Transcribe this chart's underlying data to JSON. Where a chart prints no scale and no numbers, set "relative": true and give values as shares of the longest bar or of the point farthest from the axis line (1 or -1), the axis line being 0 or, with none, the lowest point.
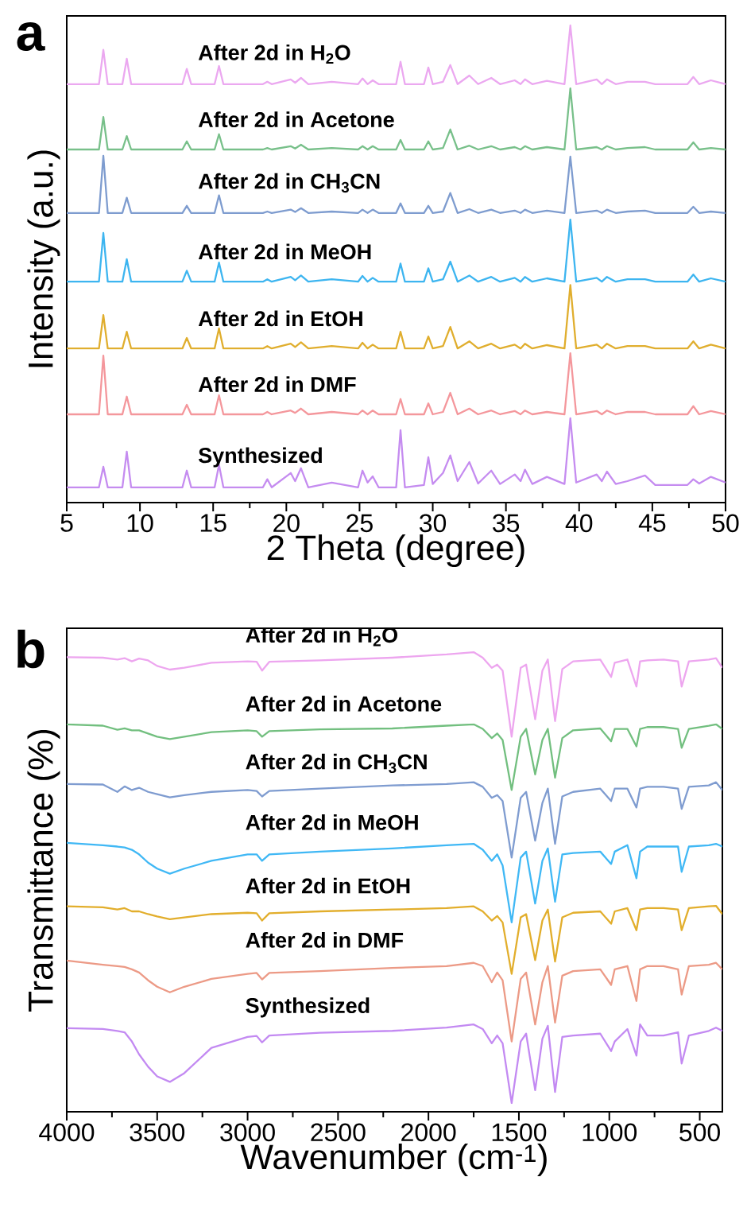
{
  "chart_data": [
    {
      "type": "line",
      "relative": true,
      "xlabel": "2 Theta (degree)",
      "ylabel": "Intensity (a.u.)",
      "annotations": [
        "a"
      ],
      "xlim": [
        5,
        50
      ],
      "xticks": [
        5,
        10,
        15,
        20,
        25,
        30,
        35,
        40,
        45,
        50
      ],
      "x": [
        5,
        7.2,
        7.5,
        7.8,
        8.8,
        9.1,
        9.4,
        12.9,
        13.2,
        13.5,
        15.1,
        15.4,
        15.7,
        18.4,
        18.7,
        19.0,
        20.3,
        20.6,
        21.0,
        21.5,
        23.1,
        24.9,
        25.2,
        25.55,
        25.9,
        26.3,
        27.5,
        27.8,
        28.1,
        29.4,
        29.7,
        30.0,
        30.7,
        31.2,
        31.7,
        32.5,
        33.1,
        34.0,
        34.6,
        35.6,
        36.0,
        36.3,
        36.8,
        37.8,
        39.0,
        39.4,
        39.8,
        41.2,
        41.55,
        41.9,
        42.5,
        43.3,
        44.5,
        45.2,
        47.4,
        47.8,
        48.2,
        49.0,
        50
      ],
      "series": [
        {
          "name": "After 2d in H$_{2}$O",
          "color": "#eba8f0",
          "values": [
            0.877,
            0.877,
            0.949,
            0.877,
            0.877,
            0.93,
            0.877,
            0.877,
            0.909,
            0.877,
            0.877,
            0.915,
            0.877,
            0.877,
            0.882,
            0.877,
            0.887,
            0.88,
            0.89,
            0.877,
            0.882,
            0.877,
            0.889,
            0.877,
            0.885,
            0.877,
            0.877,
            0.924,
            0.877,
            0.877,
            0.912,
            0.877,
            0.882,
            0.917,
            0.877,
            0.895,
            0.877,
            0.89,
            0.877,
            0.885,
            0.877,
            0.887,
            0.877,
            0.884,
            0.877,
            1.0,
            0.877,
            0.887,
            0.877,
            0.887,
            0.877,
            0.882,
            0.882,
            0.877,
            0.877,
            0.892,
            0.877,
            0.885,
            0.877
          ]
        },
        {
          "name": "After 2d in Acetone",
          "color": "#78c08a",
          "values": [
            0.74,
            0.74,
            0.808,
            0.74,
            0.74,
            0.768,
            0.74,
            0.74,
            0.757,
            0.74,
            0.74,
            0.772,
            0.74,
            0.74,
            0.743,
            0.74,
            0.747,
            0.742,
            0.75,
            0.74,
            0.743,
            0.74,
            0.747,
            0.74,
            0.747,
            0.74,
            0.74,
            0.76,
            0.74,
            0.74,
            0.757,
            0.74,
            0.743,
            0.782,
            0.74,
            0.748,
            0.74,
            0.747,
            0.74,
            0.745,
            0.74,
            0.747,
            0.74,
            0.745,
            0.74,
            0.868,
            0.74,
            0.745,
            0.74,
            0.747,
            0.74,
            0.743,
            0.745,
            0.74,
            0.74,
            0.755,
            0.74,
            0.743,
            0.74
          ]
        },
        {
          "name": "After 2d in CH$_{3}$CN",
          "color": "#7e9ccf",
          "values": [
            0.607,
            0.607,
            0.727,
            0.607,
            0.607,
            0.639,
            0.607,
            0.607,
            0.622,
            0.607,
            0.607,
            0.644,
            0.607,
            0.607,
            0.61,
            0.607,
            0.614,
            0.609,
            0.617,
            0.607,
            0.61,
            0.607,
            0.614,
            0.607,
            0.614,
            0.607,
            0.607,
            0.627,
            0.607,
            0.607,
            0.622,
            0.607,
            0.61,
            0.649,
            0.607,
            0.615,
            0.607,
            0.614,
            0.607,
            0.612,
            0.607,
            0.614,
            0.607,
            0.612,
            0.607,
            0.725,
            0.607,
            0.612,
            0.607,
            0.614,
            0.607,
            0.61,
            0.612,
            0.607,
            0.607,
            0.62,
            0.607,
            0.61,
            0.607
          ]
        },
        {
          "name": "After 2d in MeOH",
          "color": "#3db5f0",
          "values": [
            0.463,
            0.463,
            0.565,
            0.463,
            0.463,
            0.51,
            0.463,
            0.463,
            0.486,
            0.463,
            0.463,
            0.503,
            0.463,
            0.463,
            0.468,
            0.463,
            0.473,
            0.466,
            0.476,
            0.463,
            0.468,
            0.463,
            0.475,
            0.463,
            0.471,
            0.463,
            0.463,
            0.501,
            0.463,
            0.463,
            0.491,
            0.463,
            0.468,
            0.505,
            0.463,
            0.476,
            0.463,
            0.473,
            0.463,
            0.471,
            0.463,
            0.473,
            0.463,
            0.47,
            0.463,
            0.593,
            0.463,
            0.471,
            0.463,
            0.473,
            0.463,
            0.468,
            0.468,
            0.463,
            0.463,
            0.478,
            0.463,
            0.47,
            0.463
          ]
        },
        {
          "name": "After 2d in EtOH",
          "color": "#e0ae2e",
          "values": [
            0.323,
            0.323,
            0.393,
            0.323,
            0.323,
            0.358,
            0.323,
            0.323,
            0.345,
            0.323,
            0.323,
            0.365,
            0.323,
            0.323,
            0.328,
            0.323,
            0.333,
            0.326,
            0.336,
            0.323,
            0.328,
            0.323,
            0.335,
            0.323,
            0.331,
            0.323,
            0.323,
            0.358,
            0.323,
            0.323,
            0.348,
            0.323,
            0.328,
            0.368,
            0.323,
            0.338,
            0.323,
            0.333,
            0.323,
            0.331,
            0.323,
            0.333,
            0.323,
            0.33,
            0.323,
            0.456,
            0.323,
            0.331,
            0.323,
            0.333,
            0.323,
            0.328,
            0.328,
            0.323,
            0.323,
            0.338,
            0.323,
            0.331,
            0.323
          ]
        },
        {
          "name": "After 2d in DMF",
          "color": "#f4979c",
          "values": [
            0.185,
            0.185,
            0.308,
            0.185,
            0.185,
            0.222,
            0.185,
            0.185,
            0.205,
            0.185,
            0.185,
            0.225,
            0.185,
            0.185,
            0.19,
            0.185,
            0.193,
            0.188,
            0.197,
            0.185,
            0.19,
            0.185,
            0.193,
            0.185,
            0.193,
            0.185,
            0.185,
            0.217,
            0.185,
            0.185,
            0.208,
            0.185,
            0.19,
            0.23,
            0.185,
            0.197,
            0.185,
            0.193,
            0.185,
            0.192,
            0.185,
            0.193,
            0.185,
            0.19,
            0.185,
            0.313,
            0.185,
            0.192,
            0.185,
            0.193,
            0.185,
            0.19,
            0.19,
            0.185,
            0.185,
            0.202,
            0.185,
            0.192,
            0.185
          ]
        },
        {
          "name": "Synthesized",
          "color": "#c58cf0",
          "values": [
            0.032,
            0.032,
            0.075,
            0.032,
            0.032,
            0.107,
            0.032,
            0.032,
            0.067,
            0.032,
            0.032,
            0.079,
            0.032,
            0.032,
            0.049,
            0.032,
            0.062,
            0.045,
            0.072,
            0.032,
            0.042,
            0.032,
            0.067,
            0.042,
            0.055,
            0.032,
            0.032,
            0.152,
            0.032,
            0.037,
            0.095,
            0.039,
            0.062,
            0.099,
            0.045,
            0.085,
            0.04,
            0.067,
            0.039,
            0.059,
            0.045,
            0.069,
            0.039,
            0.054,
            0.039,
            0.177,
            0.042,
            0.059,
            0.045,
            0.065,
            0.039,
            0.045,
            0.057,
            0.037,
            0.037,
            0.049,
            0.04,
            0.054,
            0.042
          ]
        }
      ]
    },
    {
      "type": "line",
      "relative": true,
      "xlabel": "Wavenumber (cm$^{-1}$)",
      "ylabel": "Transmittance (%)",
      "annotations": [
        "b"
      ],
      "xlim": [
        4000,
        375
      ],
      "xticks": [
        4000,
        3500,
        3000,
        2500,
        2000,
        1500,
        1000,
        500
      ],
      "x": [
        4000,
        3800,
        3720,
        3680,
        3640,
        3600,
        3550,
        3500,
        3430,
        3350,
        3200,
        3000,
        2950,
        2920,
        2880,
        2600,
        2200,
        1900,
        1750,
        1700,
        1650,
        1620,
        1590,
        1540,
        1490,
        1460,
        1410,
        1370,
        1340,
        1300,
        1260,
        1200,
        1050,
        990,
        970,
        900,
        850,
        830,
        790,
        700,
        620,
        600,
        560,
        450,
        410,
        375
      ],
      "series": [
        {
          "name": "After 2d in H$_{2}$O",
          "color": "#eda6ef",
          "values": [
            0.989,
            0.988,
            0.984,
            0.987,
            0.98,
            0.986,
            0.982,
            0.97,
            0.962,
            0.966,
            0.977,
            0.98,
            0.979,
            0.96,
            0.979,
            0.982,
            0.988,
            0.995,
            1.0,
            0.988,
            0.966,
            0.973,
            0.96,
            0.816,
            0.966,
            0.973,
            0.854,
            0.96,
            0.984,
            0.85,
            0.963,
            0.98,
            0.984,
            0.946,
            0.977,
            0.984,
            0.925,
            0.98,
            0.982,
            0.984,
            0.98,
            0.925,
            0.98,
            0.984,
            0.987,
            0.966
          ]
        },
        {
          "name": "After 2d in Acetone",
          "color": "#72bf7f",
          "values": [
            0.843,
            0.84,
            0.831,
            0.834,
            0.83,
            0.83,
            0.823,
            0.816,
            0.811,
            0.816,
            0.826,
            0.83,
            0.828,
            0.816,
            0.828,
            0.832,
            0.834,
            0.84,
            0.843,
            0.833,
            0.813,
            0.823,
            0.809,
            0.7,
            0.816,
            0.833,
            0.734,
            0.809,
            0.833,
            0.727,
            0.813,
            0.83,
            0.834,
            0.806,
            0.833,
            0.833,
            0.795,
            0.833,
            0.837,
            0.837,
            0.833,
            0.792,
            0.833,
            0.84,
            0.843,
            0.833
          ]
        },
        {
          "name": "After 2d in CH$_{3}$CN",
          "color": "#7f9cd0",
          "values": [
            0.713,
            0.712,
            0.696,
            0.708,
            0.7,
            0.705,
            0.696,
            0.691,
            0.684,
            0.689,
            0.696,
            0.7,
            0.698,
            0.686,
            0.698,
            0.703,
            0.71,
            0.713,
            0.717,
            0.707,
            0.683,
            0.689,
            0.676,
            0.553,
            0.683,
            0.696,
            0.59,
            0.672,
            0.703,
            0.583,
            0.686,
            0.696,
            0.703,
            0.676,
            0.703,
            0.703,
            0.662,
            0.703,
            0.707,
            0.707,
            0.703,
            0.659,
            0.707,
            0.71,
            0.717,
            0.7
          ]
        },
        {
          "name": "After 2d in MeOH",
          "color": "#40b8f5",
          "values": [
            0.585,
            0.58,
            0.577,
            0.575,
            0.57,
            0.56,
            0.542,
            0.529,
            0.518,
            0.529,
            0.546,
            0.56,
            0.56,
            0.546,
            0.56,
            0.566,
            0.573,
            0.58,
            0.583,
            0.57,
            0.546,
            0.56,
            0.536,
            0.412,
            0.553,
            0.566,
            0.453,
            0.546,
            0.573,
            0.457,
            0.56,
            0.563,
            0.566,
            0.539,
            0.566,
            0.58,
            0.508,
            0.566,
            0.577,
            0.577,
            0.577,
            0.522,
            0.577,
            0.58,
            0.583,
            0.577
          ]
        },
        {
          "name": "After 2d in EtOH",
          "color": "#e2ae2c",
          "values": [
            0.447,
            0.445,
            0.44,
            0.443,
            0.436,
            0.436,
            0.43,
            0.425,
            0.419,
            0.423,
            0.43,
            0.433,
            0.432,
            0.416,
            0.432,
            0.436,
            0.44,
            0.443,
            0.447,
            0.436,
            0.416,
            0.426,
            0.412,
            0.3,
            0.423,
            0.43,
            0.33,
            0.416,
            0.44,
            0.327,
            0.423,
            0.433,
            0.436,
            0.409,
            0.436,
            0.443,
            0.395,
            0.44,
            0.443,
            0.443,
            0.44,
            0.395,
            0.443,
            0.447,
            0.448,
            0.43
          ]
        },
        {
          "name": "After 2d in DMF",
          "color": "#ec9a86",
          "values": [
            0.329,
            0.32,
            0.317,
            0.315,
            0.31,
            0.303,
            0.286,
            0.272,
            0.26,
            0.272,
            0.289,
            0.3,
            0.302,
            0.288,
            0.302,
            0.306,
            0.313,
            0.317,
            0.324,
            0.317,
            0.282,
            0.303,
            0.286,
            0.153,
            0.289,
            0.303,
            0.19,
            0.282,
            0.317,
            0.194,
            0.296,
            0.306,
            0.31,
            0.276,
            0.31,
            0.317,
            0.241,
            0.31,
            0.317,
            0.317,
            0.31,
            0.255,
            0.317,
            0.32,
            0.324,
            0.31
          ]
        },
        {
          "name": "Synthesized",
          "color": "#c38af2",
          "values": [
            0.182,
            0.18,
            0.176,
            0.173,
            0.153,
            0.125,
            0.098,
            0.077,
            0.065,
            0.084,
            0.139,
            0.163,
            0.165,
            0.151,
            0.166,
            0.172,
            0.176,
            0.183,
            0.19,
            0.18,
            0.149,
            0.166,
            0.149,
            0.019,
            0.153,
            0.17,
            0.047,
            0.159,
            0.187,
            0.043,
            0.163,
            0.166,
            0.17,
            0.132,
            0.153,
            0.18,
            0.122,
            0.19,
            0.166,
            0.166,
            0.173,
            0.105,
            0.166,
            0.176,
            0.183,
            0.176
          ]
        }
      ]
    }
  ]
}
